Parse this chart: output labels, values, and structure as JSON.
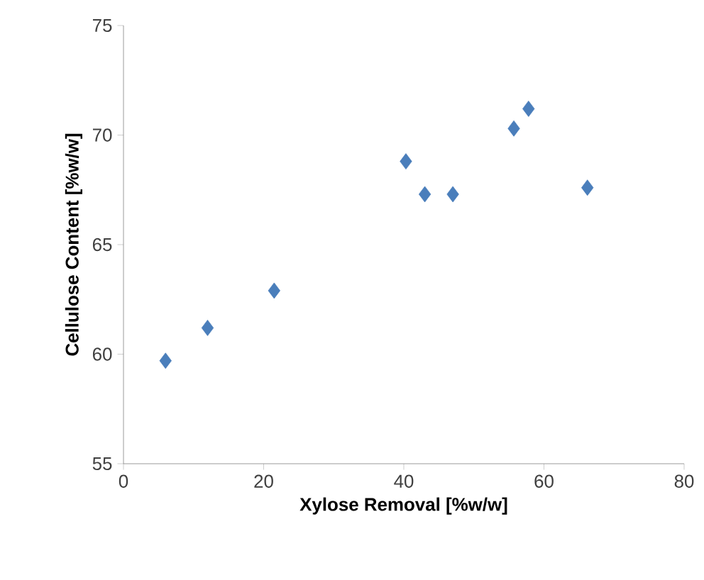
{
  "chart_data": {
    "type": "scatter",
    "xlabel": "Xylose Removal [%w/w]",
    "ylabel": "Cellulose Content [%w/w]",
    "x": [
      6,
      12,
      21.5,
      40.3,
      43,
      47,
      55.7,
      57.8,
      66.2
    ],
    "series": [
      {
        "color": "#4a7ebb",
        "values": [
          59.7,
          61.2,
          62.9,
          68.8,
          67.3,
          67.3,
          70.3,
          71.2,
          67.6
        ]
      }
    ],
    "xlim": [
      0,
      80
    ],
    "ylim": [
      55,
      75
    ],
    "xticks": [
      0,
      20,
      40,
      60,
      80
    ],
    "yticks": [
      55,
      60,
      65,
      70,
      75
    ],
    "marker": "diamond",
    "grid": false
  }
}
